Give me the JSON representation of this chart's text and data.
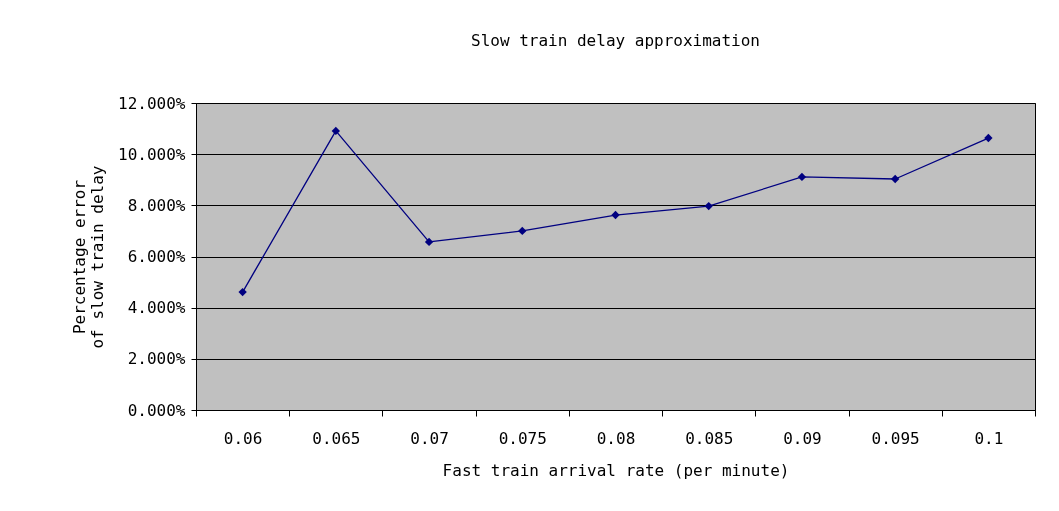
{
  "chart_data": {
    "type": "line",
    "title": "Slow train delay approximation",
    "xlabel": "Fast train arrival rate (per minute)",
    "ylabel": "Percentage error of slow train delay",
    "categories": [
      "0.06",
      "0.065",
      "0.07",
      "0.075",
      "0.08",
      "0.085",
      "0.09",
      "0.095",
      "0.1"
    ],
    "series": [
      {
        "color": "#000080",
        "values": [
          4.61,
          10.91,
          6.57,
          7.0,
          7.62,
          7.97,
          9.11,
          9.03,
          10.63
        ]
      }
    ],
    "ylim": [
      0,
      12
    ],
    "yticks": [
      {
        "value": 0,
        "label": "0.000%"
      },
      {
        "value": 2,
        "label": "2.000%"
      },
      {
        "value": 4,
        "label": "4.000%"
      },
      {
        "value": 6,
        "label": "6.000%"
      },
      {
        "value": 8,
        "label": "8.000%"
      },
      {
        "value": 10,
        "label": "10.000%"
      },
      {
        "value": 12,
        "label": "12.000%"
      }
    ],
    "grid": "y",
    "legend": false,
    "marker": "diamond",
    "line_style": "solid"
  }
}
